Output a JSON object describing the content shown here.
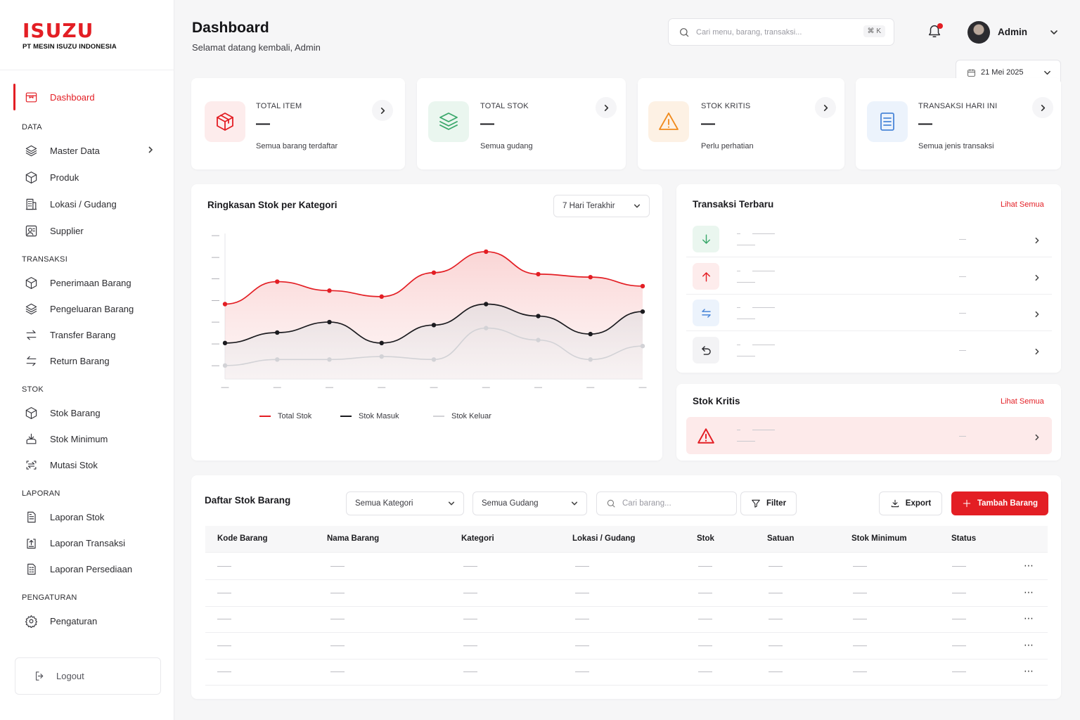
{
  "brand": {
    "logo_text": "ISUZU",
    "subtitle": "PT MESIN ISUZU INDONESIA",
    "accent": "#e31e24"
  },
  "sidebar": {
    "items": [
      {
        "label": "Dashboard",
        "icon": "box-icon",
        "active": true
      },
      {
        "label": "Master Data",
        "icon": "layers-icon",
        "has_submenu": true
      },
      {
        "label": "Produk",
        "icon": "cube-icon"
      },
      {
        "label": "Lokasi / Gudang",
        "icon": "building-icon"
      },
      {
        "label": "Supplier",
        "icon": "supplier-icon"
      },
      {
        "label": "Penerimaan Barang",
        "icon": "cube-icon"
      },
      {
        "label": "Pengeluaran Barang",
        "icon": "layers-icon"
      },
      {
        "label": "Transfer Barang",
        "icon": "swap-icon"
      },
      {
        "label": "Return Barang",
        "icon": "swap-icon"
      },
      {
        "label": "Stok Barang",
        "icon": "cube-icon"
      },
      {
        "label": "Stok Minimum",
        "icon": "tray-icon"
      },
      {
        "label": "Mutasi Stok",
        "icon": "scan-icon"
      },
      {
        "label": "Laporan Stok",
        "icon": "report-icon"
      },
      {
        "label": "Laporan Transaksi",
        "icon": "report-upload-icon"
      },
      {
        "label": "Laporan Persediaan",
        "icon": "report-list-icon"
      },
      {
        "label": "Pengaturan",
        "icon": "gear-icon"
      }
    ],
    "sections": [
      "DATA",
      "TRANSAKSI",
      "STOK",
      "LAPORAN",
      "PENGATURAN"
    ],
    "logout_label": "Logout"
  },
  "header": {
    "title": "Dashboard",
    "subtitle": "Selamat datang kembali, Admin",
    "search_placeholder": "Cari menu, barang, transaksi...",
    "search_shortcut": "⌘ K",
    "user_name": "Admin",
    "date_label": "21 Mei 2025"
  },
  "stats": [
    {
      "label": "TOTAL ITEM",
      "value": "—",
      "desc": "Semua barang terdaftar",
      "icon": "box-icon",
      "color": "#e31e24",
      "bg": "#fdecec"
    },
    {
      "label": "TOTAL STOK",
      "value": "—",
      "desc": "Semua gudang",
      "icon": "layers-icon",
      "color": "#3aa86b",
      "bg": "#eaf6ef"
    },
    {
      "label": "STOK KRITIS",
      "value": "—",
      "desc": "Perlu perhatian",
      "icon": "warning-icon",
      "color": "#f08a1c",
      "bg": "#fdf1e4"
    },
    {
      "label": "TRANSAKSI HARI INI",
      "value": "—",
      "desc": "Semua jenis transaksi",
      "icon": "document-icon",
      "color": "#4a86d8",
      "bg": "#ecf3fc"
    }
  ],
  "chart_card": {
    "title": "Ringkasan Stok per Kategori",
    "range_label": "7 Hari Terakhir"
  },
  "chart_data": {
    "type": "line",
    "title": "Ringkasan Stok per Kategori",
    "x": [
      "—",
      "—",
      "—",
      "—",
      "—",
      "—",
      "—",
      "—",
      "—"
    ],
    "y_ticks": [
      "—",
      "—",
      "—",
      "—",
      "—",
      "—",
      "—"
    ],
    "ylim": [
      0,
      100
    ],
    "grid": false,
    "legend_position": "bottom",
    "series": [
      {
        "name": "Total Stok",
        "color": "#e31e24",
        "fill": true,
        "values": [
          50,
          65,
          59,
          55,
          71,
          85,
          70,
          68,
          62
        ]
      },
      {
        "name": "Stok Masuk",
        "color": "#1b1b1f",
        "fill": true,
        "values": [
          24,
          31,
          38,
          24,
          36,
          50,
          42,
          30,
          45
        ]
      },
      {
        "name": "Stok Keluar",
        "color": "#d2d2d6",
        "fill": false,
        "values": [
          9,
          13,
          13,
          15,
          13,
          34,
          26,
          13,
          22
        ]
      }
    ]
  },
  "transactions": {
    "title": "Transaksi Terbaru",
    "link": "Lihat Semua",
    "rows": [
      {
        "icon": "arrow-down-icon",
        "color": "#3aa86b",
        "bg": "#eaf6ef",
        "value": "—"
      },
      {
        "icon": "arrow-up-icon",
        "color": "#e31e24",
        "bg": "#fdecec",
        "value": "—"
      },
      {
        "icon": "transfer-icon",
        "color": "#4a86d8",
        "bg": "#ecf3fc",
        "value": "—"
      },
      {
        "icon": "return-icon",
        "color": "#2a2a2f",
        "bg": "#f3f3f5",
        "value": "—"
      }
    ]
  },
  "critical": {
    "title": "Stok Kritis",
    "link": "Lihat Semua",
    "row_value": "—"
  },
  "table": {
    "title": "Daftar Stok Barang",
    "category_select": "Semua Kategori",
    "warehouse_select": "Semua Gudang",
    "search_placeholder": "Cari barang...",
    "filter_label": "Filter",
    "export_label": "Export",
    "add_label": "Tambah Barang",
    "columns": [
      "Kode Barang",
      "Nama Barang",
      "Kategori",
      "Lokasi / Gudang",
      "Stok",
      "Satuan",
      "Stok Minimum",
      "Status"
    ],
    "rows": [
      [
        "—",
        "—",
        "—",
        "—",
        "—",
        "—",
        "—",
        "—"
      ],
      [
        "—",
        "—",
        "—",
        "—",
        "—",
        "—",
        "—",
        "—"
      ],
      [
        "—",
        "—",
        "—",
        "—",
        "—",
        "—",
        "—",
        "—"
      ],
      [
        "—",
        "—",
        "—",
        "—",
        "—",
        "—",
        "—",
        "—"
      ],
      [
        "—",
        "—",
        "—",
        "—",
        "—",
        "—",
        "—",
        "—"
      ]
    ],
    "row_action": "⋯"
  }
}
